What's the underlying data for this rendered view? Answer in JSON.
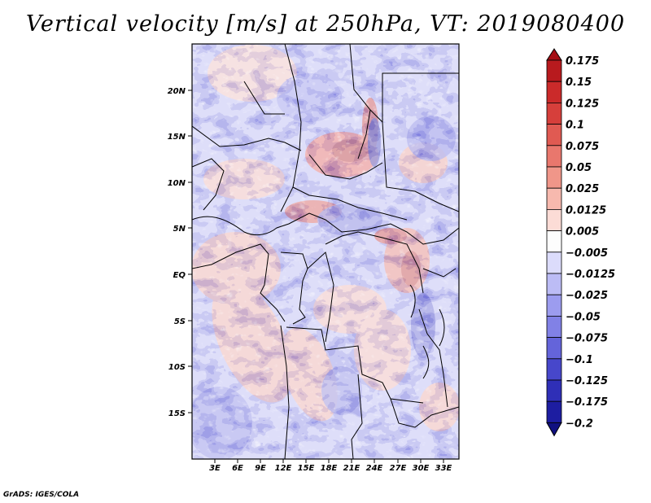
{
  "title": "Vertical velocity [m/s] at 250hPa, VT: 2019080400",
  "credit": "GrADS: IGES/COLA",
  "map": {
    "lat_ticks": [
      "20N",
      "15N",
      "10N",
      "5N",
      "EQ",
      "5S",
      "10S",
      "15S"
    ],
    "lon_ticks": [
      "3E",
      "6E",
      "9E",
      "12E",
      "15E",
      "18E",
      "21E",
      "24E",
      "27E",
      "30E",
      "33E"
    ]
  },
  "colorbar": {
    "labels": [
      "0.175",
      "0.15",
      "0.125",
      "0.1",
      "0.075",
      "0.05",
      "0.025",
      "0.0125",
      "0.005",
      "−0.005",
      "−0.0125",
      "−0.025",
      "−0.05",
      "−0.075",
      "−0.1",
      "−0.125",
      "−0.175",
      "−0.2"
    ],
    "colors": [
      "#a50f15",
      "#b81a1e",
      "#cb2a2a",
      "#d63f3b",
      "#e05a52",
      "#e9776d",
      "#f09689",
      "#f7b9ae",
      "#fcdcd6",
      "#fdfdfd",
      "#dcdcfb",
      "#bcbcf5",
      "#9c9cef",
      "#8181e6",
      "#6464da",
      "#4747cb",
      "#2f2fb7",
      "#1d1da1",
      "#101080"
    ]
  }
}
